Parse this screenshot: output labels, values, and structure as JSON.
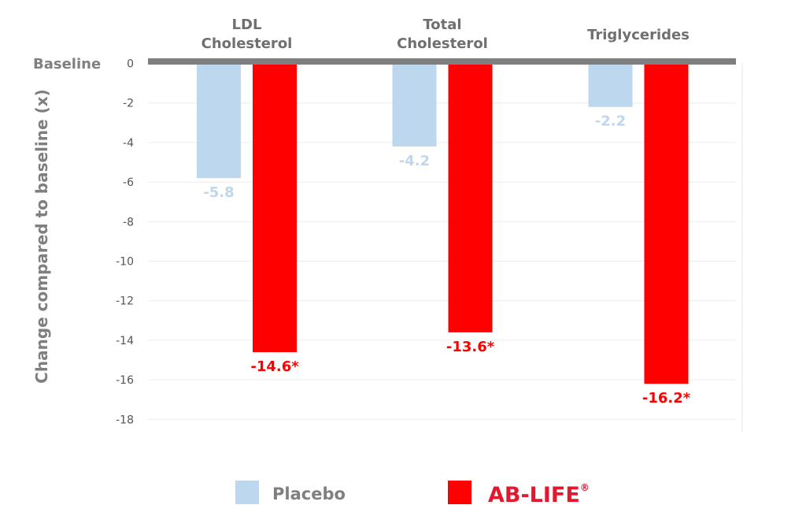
{
  "chart_data": {
    "type": "bar",
    "title": "",
    "ylabel": "Change compared to baseline (x)",
    "baseline_label": "Baseline",
    "categories": [
      "LDL Cholesterol",
      "Total Cholesterol",
      "Triglycerides"
    ],
    "category_lines": [
      [
        "LDL",
        "Cholesterol"
      ],
      [
        "Total",
        "Cholesterol"
      ],
      [
        "Triglycerides"
      ]
    ],
    "series": [
      {
        "name": "Placebo",
        "values": [
          -5.8,
          -4.2,
          -2.2
        ],
        "labels": [
          "-5.8",
          "-4.2",
          "-2.2"
        ],
        "color": "#bdd7ee"
      },
      {
        "name": "AB-LIFE",
        "values": [
          -14.6,
          -13.6,
          -16.2
        ],
        "labels": [
          "-14.6*",
          "-13.6*",
          "-16.2*"
        ],
        "color": "#ff0000"
      }
    ],
    "ylim": [
      -18,
      0
    ],
    "yticks": [
      0,
      -2,
      -4,
      -6,
      -8,
      -10,
      -12,
      -14,
      -16,
      -18
    ],
    "grid": true,
    "legend_position": "bottom",
    "legend": {
      "placebo": "Placebo",
      "ablife": "AB-LIFE",
      "ablife_mark": "®",
      "ablife_color": "#e3172d"
    },
    "baseline_color": "#7f7f7f"
  }
}
